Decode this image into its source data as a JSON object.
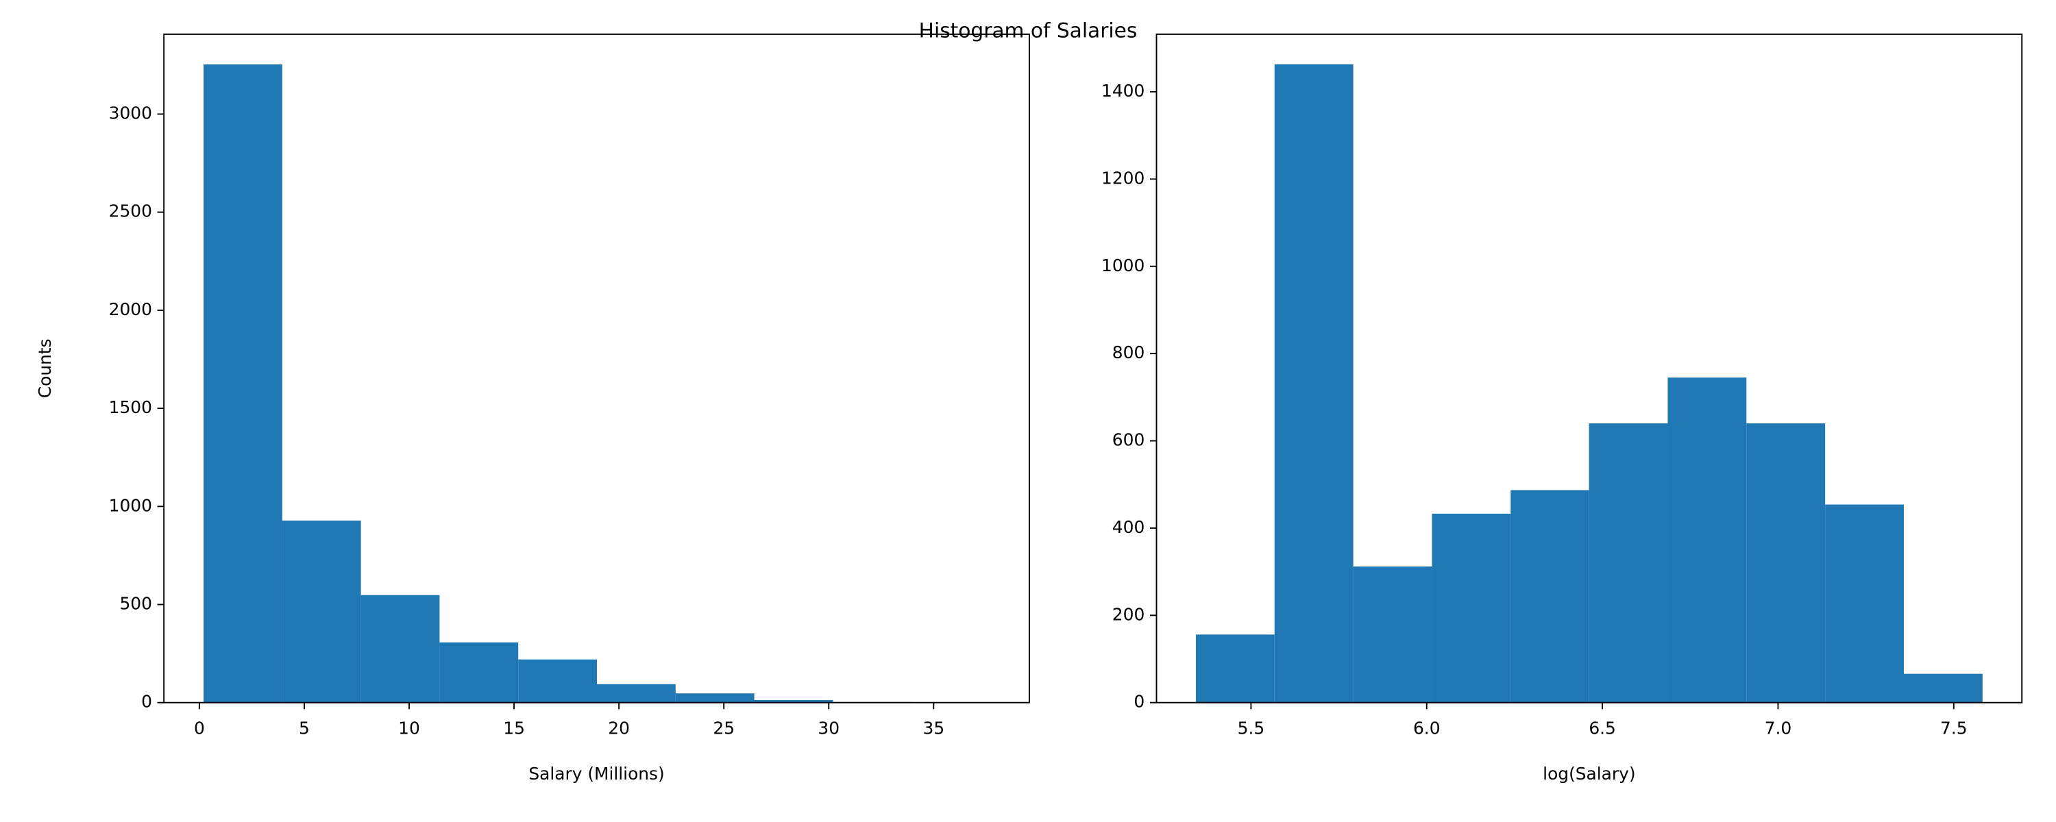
{
  "title": "Histogram of Salaries",
  "chart_data": [
    {
      "type": "histogram",
      "xlabel": "Salary (Millions)",
      "ylabel": "Counts",
      "color": "#1f77b4",
      "bins": [
        0.2,
        3.95,
        7.7,
        11.45,
        15.2,
        18.95,
        22.7,
        26.45,
        30.2,
        33.95,
        37.7
      ],
      "values": [
        3253,
        928,
        548,
        307,
        220,
        94,
        47,
        13,
        3,
        1
      ],
      "xlim": [
        -1.69,
        39.56
      ],
      "ylim": [
        0,
        3407
      ],
      "xticks": [
        0,
        5,
        10,
        15,
        20,
        25,
        30,
        35
      ],
      "yticks": [
        0,
        500,
        1000,
        1500,
        2000,
        2500,
        3000
      ]
    },
    {
      "type": "histogram",
      "xlabel": "log(Salary)",
      "color": "#1f77b4",
      "bins": [
        5.343,
        5.567,
        5.791,
        6.015,
        6.239,
        6.462,
        6.686,
        6.91,
        7.134,
        7.358,
        7.582
      ],
      "values": [
        156,
        1463,
        312,
        433,
        487,
        640,
        745,
        640,
        454,
        66
      ],
      "xlim": [
        5.231,
        7.694
      ],
      "ylim": [
        0,
        1532
      ],
      "xticks": [
        5.5,
        {
          "value": 6,
          "label": "6.0"
        },
        6.5,
        {
          "value": 7,
          "label": "7.0"
        },
        7.5
      ],
      "yticks": [
        0,
        200,
        400,
        600,
        800,
        1000,
        1200,
        1400
      ]
    }
  ]
}
